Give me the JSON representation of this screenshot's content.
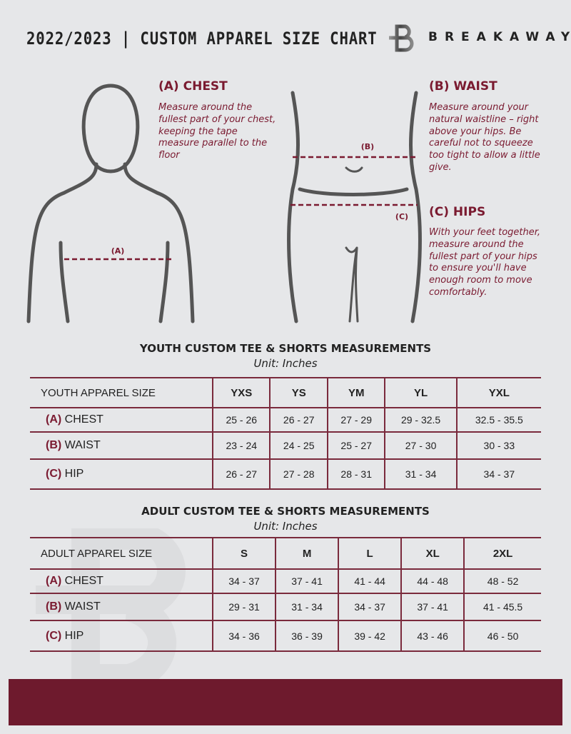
{
  "header": {
    "title": "2022/2023  |  CUSTOM APPAREL SIZE CHART",
    "brand": "BREAKAWAY",
    "logo_letter": "B"
  },
  "chest": {
    "heading": "(A) CHEST",
    "text": "Measure around the fullest part of your chest, keeping the tape measure parallel to the floor",
    "marker": "(A)"
  },
  "waist": {
    "heading": "(B) WAIST",
    "text": "Measure around your natural waistline – right above your hips. Be careful not to squeeze too tight to allow a little give.",
    "marker": "(B)"
  },
  "hips": {
    "heading": "(C) HIPS",
    "text": "With your feet together, measure around the fullest part of your hips to ensure you'll have enough room to move comfortably.",
    "marker": "(C)"
  },
  "colors": {
    "accent": "#7a1a30",
    "footer": "#6e1a2d",
    "background": "#e6e7e9"
  },
  "youth": {
    "title": "YOUTH CUSTOM TEE & SHORTS MEASUREMENTS",
    "unit": "Unit: Inches",
    "header": [
      "YOUTH APPAREL SIZE",
      "YXS",
      "YS",
      "YM",
      "YL",
      "YXL"
    ],
    "rows": [
      {
        "code": "(A)",
        "label": "CHEST",
        "values": [
          "25 - 26",
          "26 - 27",
          "27 - 29",
          "29 - 32.5",
          "32.5 - 35.5"
        ]
      },
      {
        "code": "(B)",
        "label": "WAIST",
        "values": [
          "23 - 24",
          "24 - 25",
          "25 - 27",
          "27 - 30",
          "30 - 33"
        ]
      },
      {
        "code": "(C)",
        "label": "HIP",
        "values": [
          "26 - 27",
          "27 - 28",
          "28 - 31",
          "31 - 34",
          "34 - 37"
        ]
      }
    ]
  },
  "adult": {
    "title": "ADULT CUSTOM TEE & SHORTS MEASUREMENTS",
    "unit": "Unit: Inches",
    "header": [
      "ADULT APPAREL SIZE",
      "S",
      "M",
      "L",
      "XL",
      "2XL"
    ],
    "rows": [
      {
        "code": "(A)",
        "label": "CHEST",
        "values": [
          "34 - 37",
          "37 - 41",
          "41 - 44",
          "44 - 48",
          "48 - 52"
        ]
      },
      {
        "code": "(B)",
        "label": "WAIST",
        "values": [
          "29 - 31",
          "31 - 34",
          "34 - 37",
          "37 - 41",
          "41 - 45.5"
        ]
      },
      {
        "code": "(C)",
        "label": "HIP",
        "values": [
          "34 - 36",
          "36 - 39",
          "39 - 42",
          "43 - 46",
          "46 - 50"
        ]
      }
    ]
  }
}
